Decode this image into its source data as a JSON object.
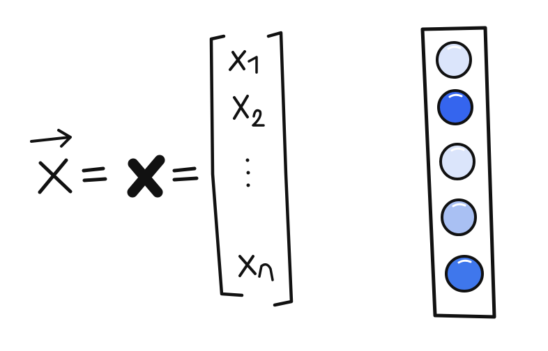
{
  "equation": {
    "vector_symbol": "x",
    "equals_1": "=",
    "bold_symbol": "x",
    "equals_2": "=",
    "entries": [
      {
        "base": "x",
        "sub": "1"
      },
      {
        "base": "x",
        "sub": "2"
      },
      {
        "base": "x",
        "sub": "n"
      }
    ],
    "ellipsis": "⋮"
  },
  "neuron_column": {
    "nodes": [
      {
        "color": "#dbe5fb"
      },
      {
        "color": "#3565ee"
      },
      {
        "color": "#dbe5fb"
      },
      {
        "color": "#a9c0f3"
      },
      {
        "color": "#3f77ec"
      }
    ]
  },
  "colors": {
    "ink": "#111111",
    "background": "#ffffff"
  }
}
